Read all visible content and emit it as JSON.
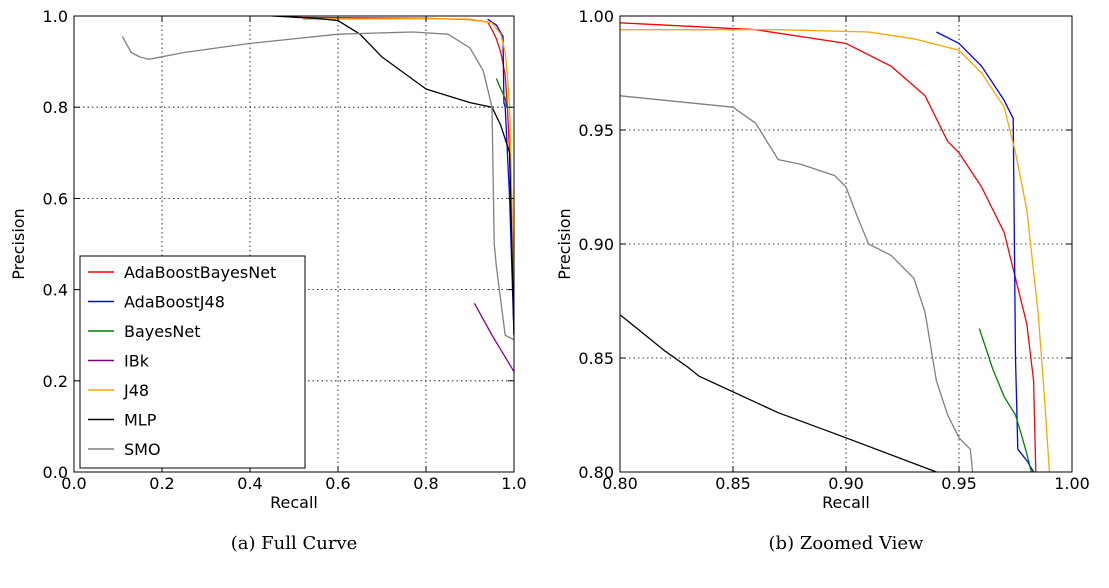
{
  "chart_data": [
    {
      "type": "line",
      "caption": "(a) Full Curve",
      "xlabel": "Recall",
      "ylabel": "Precision",
      "xlim": [
        0.0,
        1.0
      ],
      "ylim": [
        0.0,
        1.0
      ],
      "xticks": [
        "0.0",
        "0.2",
        "0.4",
        "0.6",
        "0.8",
        "1.0"
      ],
      "yticks": [
        "0.0",
        "0.2",
        "0.4",
        "0.6",
        "0.8",
        "1.0"
      ],
      "grid": true,
      "legend": "lower-left",
      "series": [
        {
          "name": "AdaBoostBayesNet",
          "color": "#ff0000",
          "x": [
            0.5,
            0.8,
            0.9,
            0.94,
            0.95,
            0.96,
            0.97,
            0.98,
            0.985,
            0.99,
            1.0
          ],
          "y": [
            0.997,
            0.995,
            0.992,
            0.987,
            0.97,
            0.95,
            0.92,
            0.87,
            0.8,
            0.7,
            0.3
          ]
        },
        {
          "name": "AdaBoostJ48",
          "color": "#0000ff",
          "x": [
            0.94,
            0.96,
            0.975,
            0.977,
            0.98,
            0.99,
            1.0
          ],
          "y": [
            0.993,
            0.98,
            0.955,
            0.81,
            0.8,
            0.6,
            0.3
          ]
        },
        {
          "name": "BayesNet",
          "color": "#008000",
          "x": [
            0.96,
            0.97,
            0.98,
            0.983
          ],
          "y": [
            0.863,
            0.84,
            0.82,
            0.8
          ]
        },
        {
          "name": "IBk",
          "color": "#800080",
          "x": [
            0.91,
            0.95,
            1.0
          ],
          "y": [
            0.37,
            0.3,
            0.22
          ]
        },
        {
          "name": "J48",
          "color": "#ffa500",
          "x": [
            0.52,
            0.8,
            0.9,
            0.95,
            0.97,
            0.98,
            0.985,
            0.99,
            1.0
          ],
          "y": [
            0.993,
            0.994,
            0.993,
            0.985,
            0.96,
            0.92,
            0.87,
            0.8,
            0.4
          ]
        },
        {
          "name": "MLP",
          "color": "#000000",
          "x": [
            0.45,
            0.55,
            0.6,
            0.65,
            0.7,
            0.8,
            0.9,
            0.95,
            0.97,
            0.99,
            1.0
          ],
          "y": [
            1.0,
            0.995,
            0.99,
            0.96,
            0.91,
            0.84,
            0.81,
            0.8,
            0.76,
            0.7,
            0.3
          ]
        },
        {
          "name": "SMO",
          "color": "#808080",
          "x": [
            0.11,
            0.13,
            0.15,
            0.17,
            0.25,
            0.4,
            0.6,
            0.77,
            0.85,
            0.9,
            0.93,
            0.95,
            0.955,
            0.96,
            0.98,
            1.0
          ],
          "y": [
            0.955,
            0.92,
            0.91,
            0.905,
            0.92,
            0.94,
            0.96,
            0.965,
            0.96,
            0.93,
            0.88,
            0.8,
            0.5,
            0.45,
            0.3,
            0.29
          ]
        }
      ]
    },
    {
      "type": "line",
      "caption": "(b) Zoomed View",
      "xlabel": "Recall",
      "ylabel": "Precision",
      "xlim": [
        0.8,
        1.0
      ],
      "ylim": [
        0.8,
        1.0
      ],
      "xticks": [
        "0.80",
        "0.85",
        "0.90",
        "0.95",
        "1.00"
      ],
      "yticks": [
        "0.80",
        "0.85",
        "0.90",
        "0.95",
        "1.00"
      ],
      "grid": true,
      "series": [
        {
          "name": "AdaBoostBayesNet",
          "color": "#ff0000",
          "x": [
            0.8,
            0.86,
            0.9,
            0.92,
            0.935,
            0.945,
            0.95,
            0.96,
            0.97,
            0.975,
            0.98,
            0.983,
            0.984
          ],
          "y": [
            0.997,
            0.994,
            0.988,
            0.978,
            0.965,
            0.945,
            0.94,
            0.925,
            0.905,
            0.885,
            0.865,
            0.84,
            0.8
          ]
        },
        {
          "name": "AdaBoostJ48",
          "color": "#0000ff",
          "x": [
            0.94,
            0.95,
            0.96,
            0.97,
            0.974,
            0.975,
            0.976,
            0.98,
            0.983
          ],
          "y": [
            0.993,
            0.988,
            0.978,
            0.963,
            0.955,
            0.85,
            0.81,
            0.805,
            0.8
          ]
        },
        {
          "name": "BayesNet",
          "color": "#008000",
          "x": [
            0.959,
            0.965,
            0.97,
            0.975,
            0.978,
            0.98,
            0.982
          ],
          "y": [
            0.863,
            0.845,
            0.833,
            0.825,
            0.815,
            0.808,
            0.8
          ]
        },
        {
          "name": "J48",
          "color": "#ffa500",
          "x": [
            0.8,
            0.87,
            0.91,
            0.93,
            0.95,
            0.96,
            0.97,
            0.975,
            0.98,
            0.985,
            0.988,
            0.99
          ],
          "y": [
            0.994,
            0.994,
            0.993,
            0.99,
            0.985,
            0.975,
            0.96,
            0.94,
            0.915,
            0.87,
            0.83,
            0.8
          ]
        },
        {
          "name": "MLP",
          "color": "#000000",
          "x": [
            0.8,
            0.82,
            0.83,
            0.835,
            0.87,
            0.9,
            0.94
          ],
          "y": [
            0.869,
            0.853,
            0.846,
            0.842,
            0.826,
            0.815,
            0.8
          ]
        },
        {
          "name": "SMO",
          "color": "#808080",
          "x": [
            0.8,
            0.85,
            0.86,
            0.87,
            0.88,
            0.895,
            0.9,
            0.905,
            0.91,
            0.92,
            0.93,
            0.935,
            0.94,
            0.945,
            0.95,
            0.955,
            0.956
          ],
          "y": [
            0.965,
            0.96,
            0.953,
            0.937,
            0.935,
            0.93,
            0.925,
            0.912,
            0.9,
            0.895,
            0.885,
            0.87,
            0.84,
            0.825,
            0.815,
            0.81,
            0.8
          ]
        }
      ]
    }
  ]
}
